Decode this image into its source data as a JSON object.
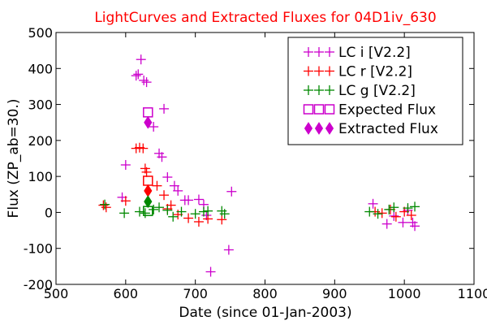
{
  "chart_data": {
    "type": "scatter",
    "title": "LightCurves and Extracted Fluxes for 04D1iv_630",
    "title_color": "#ff0000",
    "xlabel": "Date (since 01-Jan-2003)",
    "ylabel": "Flux (ZP_ab=30.)",
    "xlim": [
      500,
      1100
    ],
    "ylim": [
      -200,
      500
    ],
    "xticks": [
      500,
      600,
      700,
      800,
      900,
      1000,
      1100
    ],
    "yticks": [
      -200,
      -100,
      0,
      100,
      200,
      300,
      400,
      500
    ],
    "grid": false,
    "legend_position": "top-right",
    "series": [
      {
        "name": "LC i [V2.2]",
        "marker": "plus",
        "color": "#cc00cc",
        "x": [
          595,
          600,
          615,
          618,
          622,
          626,
          630,
          640,
          648,
          652,
          655,
          660,
          670,
          675,
          685,
          690,
          705,
          712,
          716,
          722,
          748,
          752,
          955,
          975,
          985,
          998,
          1005,
          1012,
          1015
        ],
        "y": [
          42,
          132,
          380,
          384,
          425,
          367,
          362,
          238,
          164,
          154,
          288,
          98,
          74,
          60,
          34,
          34,
          36,
          22,
          -8,
          -165,
          -104,
          58,
          24,
          -32,
          -10,
          -28,
          6,
          -28,
          -38
        ]
      },
      {
        "name": "LC r [V2.2]",
        "marker": "plus",
        "color": "#ff0000",
        "x": [
          568,
          572,
          600,
          615,
          620,
          625,
          628,
          630,
          645,
          655,
          660,
          665,
          675,
          690,
          705,
          718,
          738,
          958,
          968,
          980,
          988,
          1000,
          1010
        ],
        "y": [
          20,
          14,
          32,
          178,
          180,
          178,
          122,
          112,
          74,
          48,
          10,
          20,
          -6,
          -16,
          -26,
          -18,
          -20,
          2,
          -2,
          8,
          -12,
          2,
          -8
        ]
      },
      {
        "name": "LC g [V2.2]",
        "marker": "plus",
        "color": "#008800",
        "x": [
          570,
          598,
          620,
          628,
          640,
          648,
          660,
          668,
          680,
          700,
          712,
          718,
          738,
          742,
          950,
          962,
          978,
          985,
          1005,
          1015
        ],
        "y": [
          22,
          -2,
          2,
          -2,
          8,
          14,
          6,
          -12,
          2,
          -4,
          2,
          4,
          4,
          -4,
          2,
          -4,
          8,
          14,
          12,
          16
        ]
      },
      {
        "name": "Expected Flux",
        "marker": "square-open",
        "color": "#cc00cc",
        "x": [
          632
        ],
        "y": [
          278
        ]
      },
      {
        "name": "Extracted Flux",
        "marker": "diamond-filled",
        "color": "#cc00cc",
        "x": [
          632
        ],
        "y": [
          250
        ]
      }
    ],
    "extra_markers": [
      {
        "series_color": "#ff0000",
        "marker": "square-open",
        "x": 632,
        "y": 88
      },
      {
        "series_color": "#ff0000",
        "marker": "diamond-filled",
        "x": 632,
        "y": 60
      },
      {
        "series_color": "#008800",
        "marker": "square-open",
        "x": 632,
        "y": 4
      },
      {
        "series_color": "#008800",
        "marker": "diamond-filled",
        "x": 632,
        "y": 30
      }
    ]
  }
}
